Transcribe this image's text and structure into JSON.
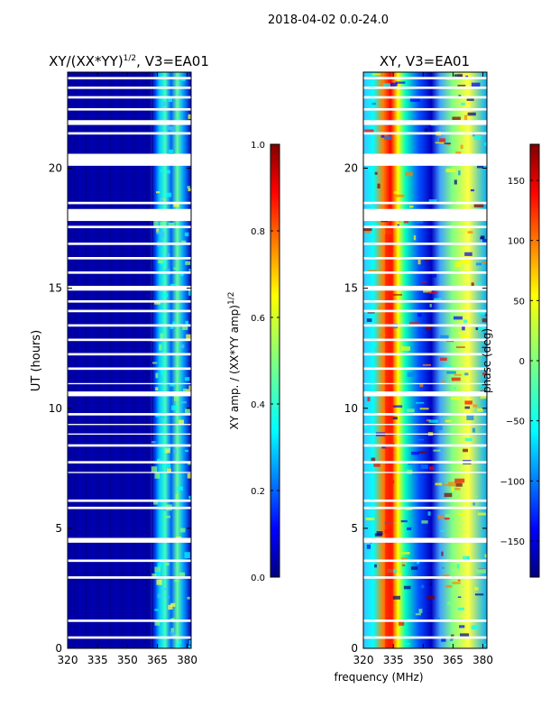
{
  "figure": {
    "suptitle": "2018-04-02 0.0-24.0",
    "shared_xlabel": "frequency (MHz)"
  },
  "colors": {
    "jet": [
      "#00007f",
      "#0000ff",
      "#007fff",
      "#00ffff",
      "#7fff7f",
      "#ffff00",
      "#ff7f00",
      "#ff0000",
      "#7f0000"
    ],
    "gap": "#ffffff"
  },
  "chart_data": [
    {
      "type": "heatmap",
      "title_main": "XY/(XX*YY)",
      "title_sup": "1/2",
      "title_tail": ", V3=EA01",
      "xlabel": "",
      "ylabel": "UT (hours)",
      "xlim": [
        320,
        382
      ],
      "ylim": [
        0,
        24
      ],
      "xticks": [
        320,
        335,
        350,
        365,
        380
      ],
      "yticks": [
        0,
        5,
        10,
        15,
        20
      ],
      "colorbar": {
        "label_main": "XY amp. / (XX*YY amp)",
        "label_sup": "1/2",
        "range": [
          0.0,
          1.0
        ],
        "ticks": [
          "0.0",
          "0.2",
          "0.4",
          "0.6",
          "0.8",
          "1.0"
        ],
        "tick_values": [
          0.0,
          0.2,
          0.4,
          0.6,
          0.8,
          1.0
        ]
      },
      "description_values": {
        "low_band_MHz": [
          320,
          362
        ],
        "low_band_amp": 0.05,
        "high_band_MHz": [
          362,
          382
        ],
        "high_band_amp_range": [
          0.2,
          0.55
        ]
      }
    },
    {
      "type": "heatmap",
      "title": "XY, V3=EA01",
      "xlabel": "frequency (MHz)",
      "ylabel": "",
      "xlim": [
        320,
        382
      ],
      "ylim": [
        0,
        24
      ],
      "xticks": [
        320,
        335,
        350,
        365,
        380
      ],
      "yticks": [
        0,
        5,
        10,
        15,
        20
      ],
      "colorbar": {
        "label": "phase (deg)",
        "range": [
          -180,
          180
        ],
        "ticks": [
          "−150",
          "−100",
          "−50",
          "0",
          "50",
          "100",
          "150"
        ],
        "tick_values": [
          -150,
          -100,
          -50,
          0,
          50,
          100,
          150
        ]
      },
      "description_values": {
        "phase_ridge_MHz": 333,
        "phase_ridge_deg": 150,
        "mid_band_deg": -120
      }
    }
  ],
  "gaps_hours": [
    [
      0.4,
      0.5
    ],
    [
      1.1,
      1.2
    ],
    [
      2.9,
      3.0
    ],
    [
      3.6,
      3.7
    ],
    [
      4.4,
      4.6
    ],
    [
      5.8,
      5.9
    ],
    [
      6.1,
      6.2
    ],
    [
      7.3,
      7.35
    ],
    [
      7.7,
      7.8
    ],
    [
      8.4,
      8.5
    ],
    [
      8.9,
      8.95
    ],
    [
      9.3,
      9.35
    ],
    [
      9.7,
      9.8
    ],
    [
      10.5,
      10.7
    ],
    [
      11.0,
      11.05
    ],
    [
      11.6,
      11.7
    ],
    [
      12.2,
      12.3
    ],
    [
      12.8,
      12.9
    ],
    [
      13.4,
      13.5
    ],
    [
      14.0,
      14.1
    ],
    [
      14.4,
      14.5
    ],
    [
      14.9,
      15.1
    ],
    [
      15.6,
      15.7
    ],
    [
      16.2,
      16.3
    ],
    [
      16.8,
      16.9
    ],
    [
      17.5,
      17.6
    ],
    [
      17.8,
      18.3
    ],
    [
      18.5,
      18.6
    ],
    [
      20.1,
      20.6
    ],
    [
      21.4,
      21.5
    ],
    [
      21.8,
      22.0
    ],
    [
      22.4,
      22.5
    ],
    [
      22.9,
      23.0
    ],
    [
      23.3,
      23.4
    ],
    [
      23.7,
      23.8
    ]
  ]
}
